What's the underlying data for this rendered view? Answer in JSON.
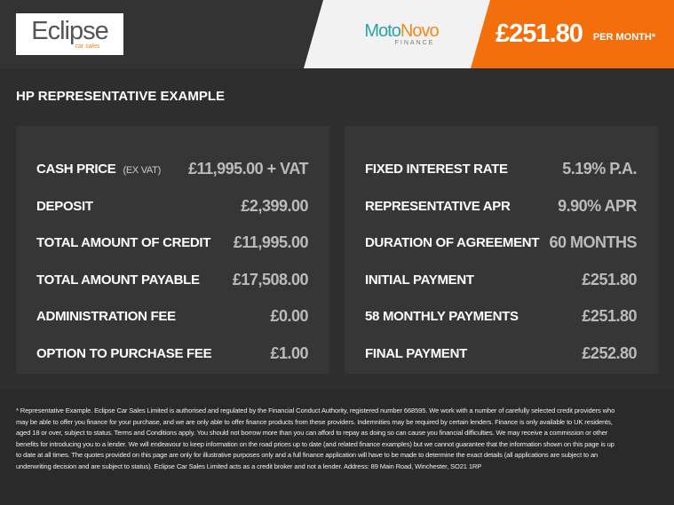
{
  "header": {
    "logo": {
      "main": "Eclipse",
      "sub": "car sales"
    },
    "partner": {
      "part1": "Moto",
      "part2": "Novo",
      "sub": "FINANCE"
    },
    "monthly_price": "£251.80",
    "per_month": "PER MONTH*",
    "accent_color": "#f26f0c"
  },
  "title": "HP REPRESENTATIVE EXAMPLE",
  "left": [
    {
      "label": "CASH PRICE",
      "note": "(EX VAT)",
      "value": "£11,995.00 + VAT"
    },
    {
      "label": "DEPOSIT",
      "value": "£2,399.00"
    },
    {
      "label": "TOTAL AMOUNT OF CREDIT",
      "value": "£11,995.00"
    },
    {
      "label": "TOTAL AMOUNT PAYABLE",
      "value": "£17,508.00"
    },
    {
      "label": "ADMINISTRATION FEE",
      "value": "£0.00"
    },
    {
      "label": "OPTION TO PURCHASE FEE",
      "value": "£1.00"
    }
  ],
  "right": [
    {
      "label": "FIXED INTEREST RATE",
      "value": "5.19% P.A."
    },
    {
      "label": "REPRESENTATIVE APR",
      "value": "9.90% APR"
    },
    {
      "label": "DURATION OF AGREEMENT",
      "value": "60 MONTHS"
    },
    {
      "label": "INITIAL PAYMENT",
      "value": "£251.80"
    },
    {
      "label": "58 MONTHLY PAYMENTS",
      "value": "£251.80"
    },
    {
      "label": "FINAL PAYMENT",
      "value": "£252.80"
    }
  ],
  "disclaimer": "* Representative Example. Eclipse Car Sales Limited is authorised and regulated by the Financial Conduct Authority, registered number 668595. We work with a number of carefully selected credit providers who may be able to offer you finance for your purchase, and we are only able to offer finance products from these providers. Indemnities may be required by certain lenders. Finance is only available to UK residents, aged 18 or over, subject to status. Terms and Conditions apply. You should not borrow more than you can afford to repay as doing so can cause you financial difficulties. We may receive a commission or other benefits for introducing you to a lender. We will endeavour to keep information on the road prices up to date (and related finance examples) but we cannot guarantee that the information shown on this page is up to date at all times. The quotes provided on this page are only for illustrative purposes only and a full finance application will have to be made to determine the exact details (all applications are subject to an underwriting decision and are subject to status). Eclipse Car Sales Limited acts as a credit broker and not a lender. Address: 89 Main Road, Winchester, SO21 1RP"
}
